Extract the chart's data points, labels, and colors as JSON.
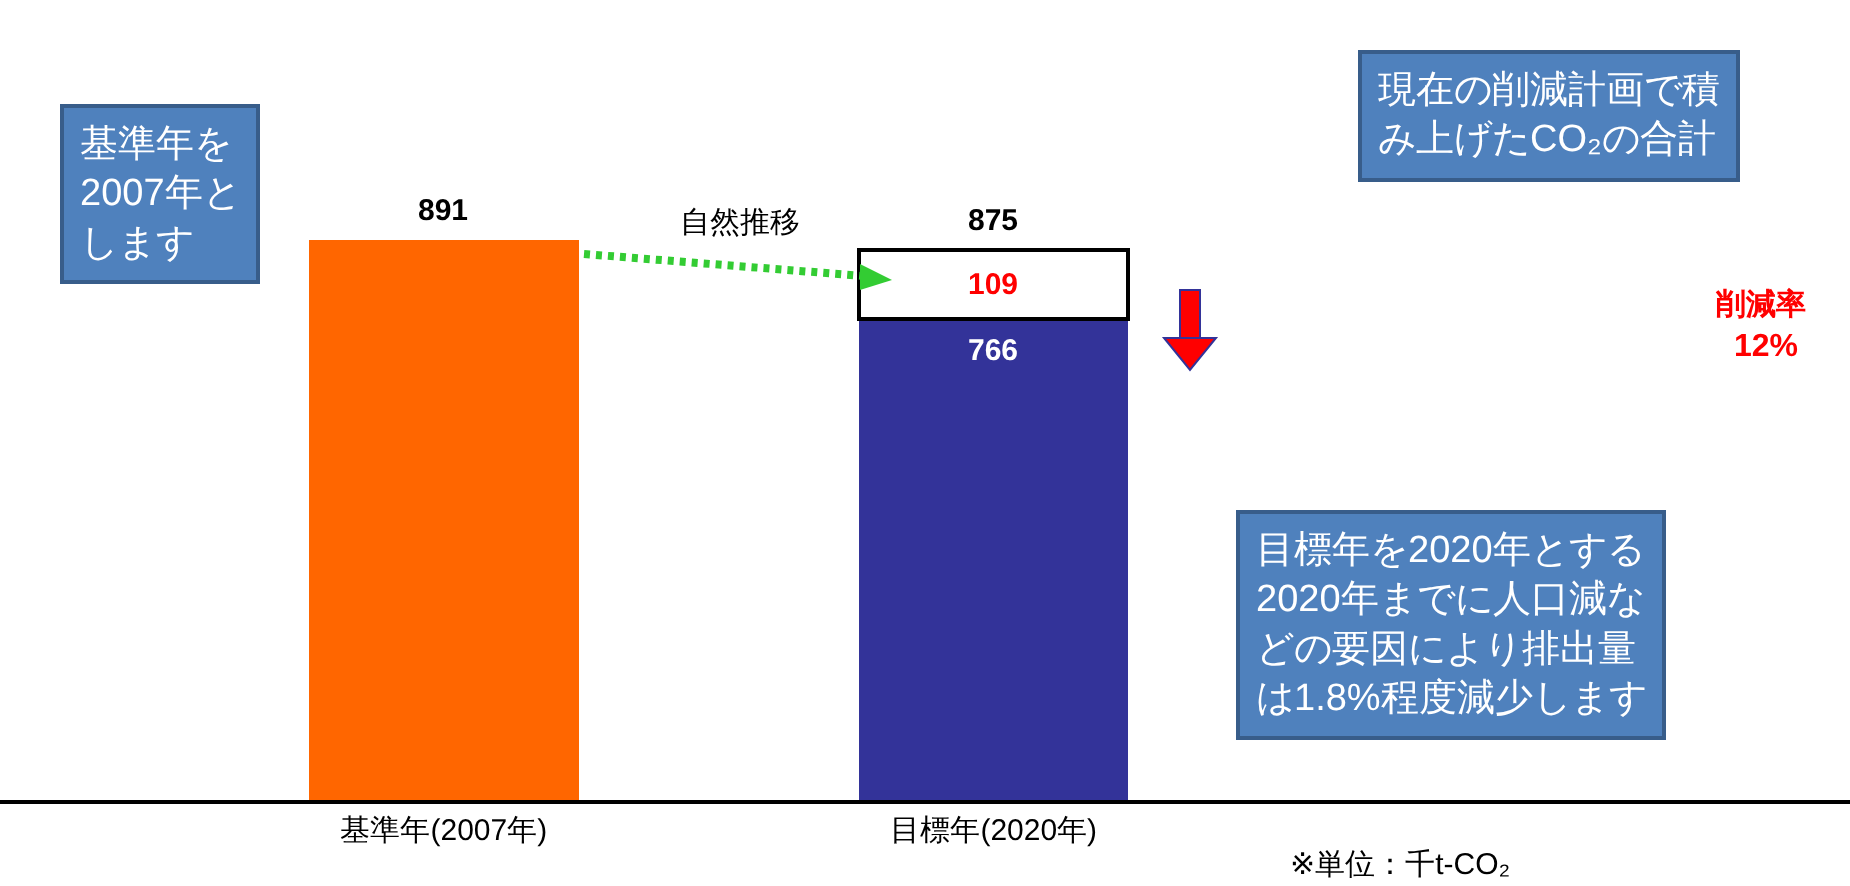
{
  "chart_data": {
    "type": "bar",
    "stacked": true,
    "tick_labels": "x",
    "categories": [
      "基準年(2007年)",
      "目標年(2020年)"
    ],
    "series": [
      {
        "colors": [
          "#ff6600",
          "#333399"
        ],
        "values": [
          891,
          766
        ],
        "value_labels": [
          "891",
          "766"
        ]
      },
      {
        "color": "#ffffff",
        "values": [
          null,
          109
        ],
        "value_labels": [
          null,
          "109"
        ]
      }
    ],
    "totals": [
      null,
      "875"
    ],
    "annotations": [
      "自然推移",
      "削減率",
      "12%",
      "基準年を2007年とします",
      "現在の削減計画で積み上げたCO₂の合計",
      "目標年を2020年とする2020年までに人口減などの要因により排出量は1.8%程度減少します",
      "※単位：千t-CO₂"
    ]
  }
}
